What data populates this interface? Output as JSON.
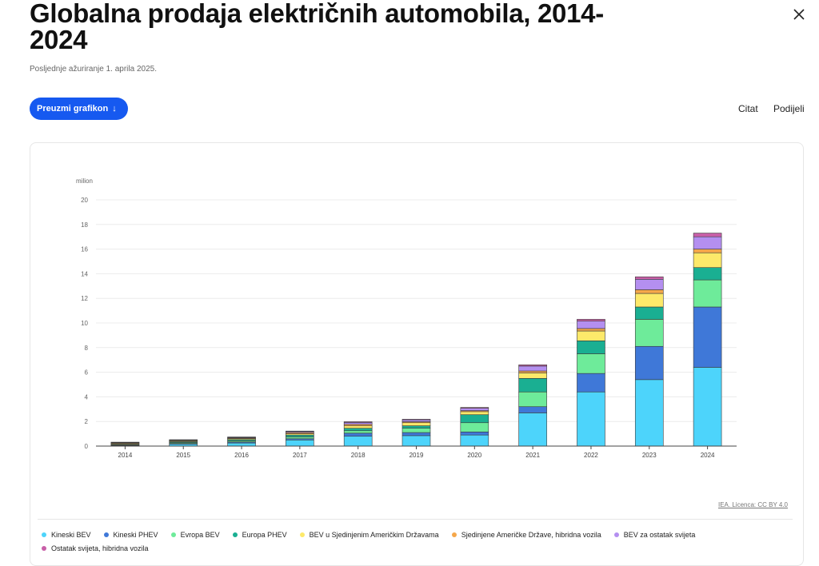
{
  "header": {
    "title": "Globalna prodaja električnih automobila, 2014-2024",
    "updated": "Posljednje ažuriranje 1. aprila 2025.",
    "download_label": "Preuzmi grafikon",
    "download_arrow": "↓",
    "cite_label": "Citat",
    "share_label": "Podijeli",
    "close_icon": "close-icon"
  },
  "source": "IEA. Licenca: CC BY 4.0",
  "chart_data": {
    "type": "bar",
    "stacked": true,
    "ylabel": "milion",
    "ylim": [
      0,
      20
    ],
    "yticks": [
      0,
      2,
      4,
      6,
      8,
      10,
      12,
      14,
      16,
      18,
      20
    ],
    "grid": true,
    "legend_position": "bottom",
    "categories": [
      "2014",
      "2015",
      "2016",
      "2017",
      "2018",
      "2019",
      "2020",
      "2021",
      "2022",
      "2023",
      "2024"
    ],
    "series": [
      {
        "name": "Kineski BEV",
        "color": "#4dd4fb",
        "values": [
          0.05,
          0.15,
          0.25,
          0.5,
          0.8,
          0.85,
          0.9,
          2.7,
          4.4,
          5.4,
          6.4
        ]
      },
      {
        "name": "Kineski PHEV",
        "color": "#3f78d8",
        "values": [
          0.02,
          0.06,
          0.08,
          0.1,
          0.25,
          0.25,
          0.25,
          0.5,
          1.5,
          2.7,
          4.9
        ]
      },
      {
        "name": "Evropa BEV",
        "color": "#6eeb9a",
        "values": [
          0.05,
          0.08,
          0.1,
          0.15,
          0.2,
          0.35,
          0.75,
          1.2,
          1.6,
          2.2,
          2.2
        ]
      },
      {
        "name": "Europa PHEV",
        "color": "#1aaf92",
        "values": [
          0.04,
          0.07,
          0.1,
          0.15,
          0.2,
          0.2,
          0.65,
          1.1,
          1.05,
          1.0,
          1.0
        ]
      },
      {
        "name": "BEV u Sjedinjenim Američkim Državama",
        "color": "#fde96a",
        "values": [
          0.06,
          0.07,
          0.08,
          0.1,
          0.2,
          0.25,
          0.25,
          0.45,
          0.8,
          1.1,
          1.2
        ]
      },
      {
        "name": "Sjedinjene Američke Države, hibridna vozila",
        "color": "#f5a74a",
        "values": [
          0.05,
          0.04,
          0.05,
          0.1,
          0.12,
          0.08,
          0.08,
          0.15,
          0.2,
          0.3,
          0.3
        ]
      },
      {
        "name": "BEV za ostatak svijeta",
        "color": "#b48ff0",
        "values": [
          0.03,
          0.03,
          0.05,
          0.08,
          0.15,
          0.15,
          0.2,
          0.4,
          0.6,
          0.85,
          1.0
        ]
      },
      {
        "name": "Ostatak svijeta, hibridna vozila",
        "color": "#c85fa8",
        "values": [
          0.02,
          0.02,
          0.03,
          0.04,
          0.06,
          0.05,
          0.06,
          0.1,
          0.15,
          0.2,
          0.3
        ]
      }
    ]
  }
}
